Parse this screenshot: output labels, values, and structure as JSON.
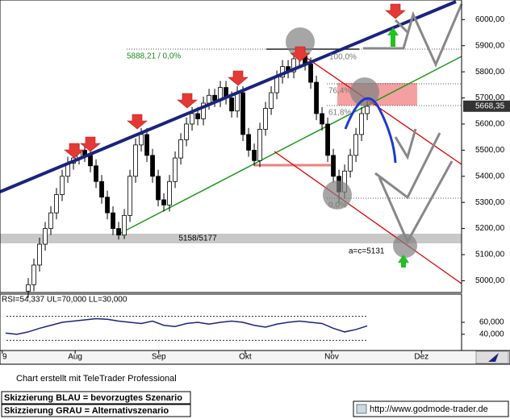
{
  "chart_data": [
    {
      "type": "candlestick",
      "xlim": [
        -5,
        76.7
      ],
      "ylim": [
        4955,
        6075
      ],
      "yticks": [
        {
          "value": 6000,
          "label": "6000,00"
        },
        {
          "value": 5900,
          "label": "5900,00"
        },
        {
          "value": 5800,
          "label": "5800,00"
        },
        {
          "value": 5700,
          "label": "5700,00"
        },
        {
          "value": 5600,
          "label": "5600,00"
        },
        {
          "value": 5500,
          "label": "5500,00"
        },
        {
          "value": 5400,
          "label": "5400,00"
        },
        {
          "value": 5300,
          "label": "5300,00"
        },
        {
          "value": 5200,
          "label": "5200,00"
        },
        {
          "value": 5100,
          "label": "5100,00"
        },
        {
          "value": 5000,
          "label": "5000,00"
        }
      ],
      "last": {
        "value": 5668.35,
        "label": "5668,35"
      },
      "up_color": "#ffffff",
      "down_color": "#000000",
      "open": [
        4960,
        4985,
        5060,
        5140,
        5200,
        5260,
        5330,
        5400,
        5450,
        5470,
        5500,
        5480,
        5440,
        5380,
        5320,
        5260,
        5200,
        5175,
        5250,
        5400,
        5520,
        5560,
        5480,
        5400,
        5310,
        5290,
        5380,
        5470,
        5540,
        5600,
        5640,
        5620,
        5680,
        5710,
        5690,
        5740,
        5700,
        5650,
        5720,
        5560,
        5500,
        5460,
        5580,
        5660,
        5720,
        5780,
        5820,
        5800,
        5850,
        5860,
        5830,
        5760,
        5640,
        5600,
        5480,
        5400,
        5340,
        5420,
        5480,
        5560,
        5640
      ],
      "high": [
        5010,
        5085,
        5165,
        5225,
        5285,
        5355,
        5425,
        5475,
        5495,
        5525,
        5525,
        5505,
        5465,
        5405,
        5345,
        5285,
        5225,
        5275,
        5425,
        5545,
        5585,
        5585,
        5505,
        5425,
        5335,
        5405,
        5495,
        5565,
        5625,
        5665,
        5665,
        5705,
        5735,
        5735,
        5765,
        5765,
        5725,
        5745,
        5745,
        5585,
        5525,
        5605,
        5685,
        5745,
        5805,
        5845,
        5845,
        5875,
        5888,
        5885,
        5855,
        5785,
        5665,
        5625,
        5505,
        5425,
        5445,
        5505,
        5585,
        5665,
        5690
      ],
      "low": [
        4935,
        4960,
        5035,
        5115,
        5175,
        5235,
        5305,
        5375,
        5425,
        5445,
        5455,
        5415,
        5355,
        5295,
        5235,
        5175,
        5158,
        5160,
        5225,
        5375,
        5495,
        5455,
        5375,
        5285,
        5265,
        5265,
        5355,
        5445,
        5515,
        5575,
        5595,
        5595,
        5655,
        5665,
        5665,
        5675,
        5625,
        5625,
        5535,
        5475,
        5440,
        5435,
        5555,
        5635,
        5695,
        5755,
        5775,
        5775,
        5825,
        5805,
        5735,
        5615,
        5575,
        5455,
        5375,
        5300,
        5315,
        5395,
        5455,
        5535,
        5615
      ],
      "close": [
        4985,
        5060,
        5140,
        5200,
        5260,
        5330,
        5400,
        5450,
        5470,
        5500,
        5480,
        5440,
        5380,
        5320,
        5260,
        5200,
        5175,
        5250,
        5400,
        5520,
        5560,
        5480,
        5400,
        5310,
        5290,
        5380,
        5470,
        5540,
        5600,
        5640,
        5620,
        5680,
        5710,
        5690,
        5740,
        5700,
        5650,
        5720,
        5560,
        5500,
        5460,
        5580,
        5660,
        5720,
        5780,
        5820,
        5800,
        5850,
        5860,
        5830,
        5760,
        5640,
        5600,
        5480,
        5400,
        5340,
        5420,
        5480,
        5560,
        5640,
        5668
      ],
      "annotations": [
        "5888,21 / 0,0%",
        "100,0%",
        "76,4%",
        "61,8%",
        "0,0%",
        "5158/5177",
        "a=c=5131"
      ]
    },
    {
      "type": "line",
      "title": "RSI=54,337 UL=70,000 LL=30,000",
      "xlim": [
        -5,
        76.7
      ],
      "ylim": [
        13,
        107
      ],
      "yticks": [
        {
          "value": 60,
          "label": "60,000"
        },
        {
          "value": 40,
          "label": "40,000"
        }
      ],
      "levels": [
        70,
        30
      ],
      "xticks": [
        {
          "value": -4.6,
          "label": "9"
        },
        {
          "value": 8.3,
          "label": "Aug"
        },
        {
          "value": 23.1,
          "label": "Sep"
        },
        {
          "value": 38.4,
          "label": "Okt"
        },
        {
          "value": 53.7,
          "label": "Nov"
        },
        {
          "value": 69.6,
          "label": "Dez"
        }
      ],
      "color": "#1a237e",
      "x": [
        -4,
        -2,
        0,
        2,
        4,
        6,
        8,
        10,
        12,
        14,
        16,
        18,
        20,
        22,
        24,
        26,
        28,
        30,
        32,
        34,
        36,
        38,
        40,
        42,
        44,
        46,
        48,
        50,
        52,
        54,
        56,
        58,
        60
      ],
      "values": [
        42,
        40,
        44,
        50,
        55,
        60,
        62,
        64,
        66,
        65,
        62,
        60,
        58,
        62,
        55,
        53,
        58,
        60,
        57,
        60,
        62,
        60,
        55,
        52,
        57,
        60,
        62,
        60,
        58,
        50,
        44,
        48,
        54
      ]
    }
  ],
  "footer": {
    "credit": "Chart erstellt mit TeleTrader Professional",
    "legend": [
      "Skizzierung BLAU = bevorzugtes Szenario",
      "Skizzierung GRAU = Alternativszenario"
    ],
    "url": "http://www.godmode-trader.de"
  }
}
